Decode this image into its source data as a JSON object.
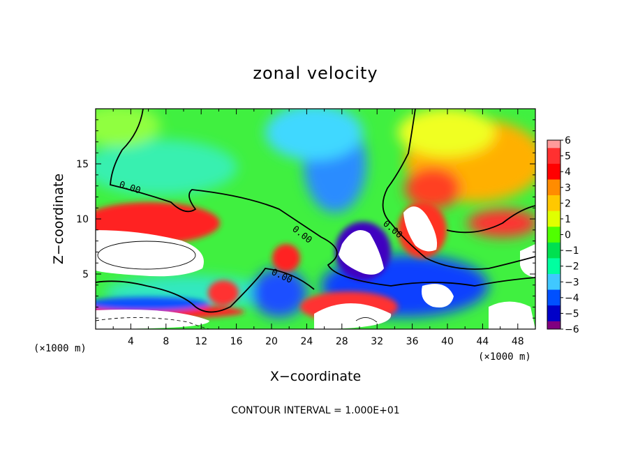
{
  "chart_data": {
    "type": "heatmap",
    "title": "zonal velocity",
    "xlabel": "X−coordinate",
    "ylabel": "Z−coordinate",
    "x_unit_label": "(×1000 m)",
    "x_unit_label_right": "(×1000 m)",
    "xlim": [
      0,
      50
    ],
    "ylim": [
      0,
      20
    ],
    "x_ticks": [
      4,
      8,
      12,
      16,
      20,
      24,
      28,
      32,
      36,
      40,
      44,
      48
    ],
    "y_ticks": [
      5,
      10,
      15
    ],
    "contour_interval_text": "CONTOUR INTERVAL = 1.000E+01",
    "contour_labels": [
      "0.00",
      "0.00",
      "0.00",
      "0.00"
    ],
    "colorbar": {
      "ticks": [
        "6",
        "5",
        "4",
        "3",
        "2",
        "1",
        "0",
        "−1",
        "−2",
        "−3",
        "−4",
        "−5",
        "−6"
      ],
      "values": [
        6,
        5,
        4,
        3,
        2,
        1,
        0,
        -1,
        -2,
        -3,
        -4,
        -5,
        -6
      ],
      "colors": [
        "#ff9a9a",
        "#ff3030",
        "#ff0000",
        "#ff8c00",
        "#ffc800",
        "#e0ff00",
        "#50ff00",
        "#00e050",
        "#00ffa0",
        "#40c8ff",
        "#0050ff",
        "#0000c8",
        "#800080"
      ]
    },
    "colors": {
      "frame": "#000000",
      "background": "#ffffff",
      "contour": "#000000"
    }
  }
}
